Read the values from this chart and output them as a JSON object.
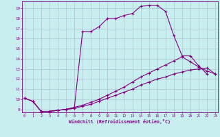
{
  "xlabel": "Windchill (Refroidissement éolien,°C)",
  "bg_color": "#c8eef0",
  "line_color": "#800080",
  "grid_color": "#aabbcc",
  "line1_x": [
    0,
    1,
    2,
    3,
    4,
    5,
    6,
    7,
    8,
    9,
    10,
    11,
    12,
    13,
    14,
    15,
    16,
    17,
    18,
    19,
    20,
    21,
    22
  ],
  "line1_y": [
    10.1,
    9.8,
    8.8,
    8.8,
    8.9,
    9.0,
    9.1,
    16.7,
    16.7,
    17.2,
    18.0,
    18.0,
    18.3,
    18.5,
    19.2,
    19.3,
    19.3,
    18.7,
    16.3,
    14.3,
    14.3,
    13.3,
    12.5
  ],
  "line2_x": [
    0,
    1,
    2,
    3,
    4,
    5,
    6,
    7,
    8,
    9,
    10,
    11,
    12,
    13,
    14,
    15,
    16,
    17,
    18,
    19,
    20,
    21,
    22,
    23
  ],
  "line2_y": [
    10.1,
    9.8,
    8.8,
    8.8,
    8.9,
    9.0,
    9.2,
    9.4,
    9.7,
    10.0,
    10.4,
    10.8,
    11.2,
    11.7,
    12.2,
    12.6,
    13.0,
    13.4,
    13.8,
    14.2,
    13.7,
    13.2,
    12.8,
    12.5
  ],
  "line3_x": [
    0,
    1,
    2,
    3,
    4,
    5,
    6,
    7,
    8,
    9,
    10,
    11,
    12,
    13,
    14,
    15,
    16,
    17,
    18,
    19,
    20,
    21,
    22,
    23
  ],
  "line3_y": [
    10.1,
    9.8,
    8.8,
    8.8,
    8.9,
    9.0,
    9.1,
    9.3,
    9.5,
    9.8,
    10.1,
    10.4,
    10.7,
    11.0,
    11.4,
    11.7,
    12.0,
    12.2,
    12.5,
    12.7,
    12.9,
    13.0,
    13.1,
    12.5
  ],
  "xlim_min": -0.3,
  "xlim_max": 23.3,
  "ylim_min": 8.7,
  "ylim_max": 19.7,
  "yticks": [
    9,
    10,
    11,
    12,
    13,
    14,
    15,
    16,
    17,
    18,
    19
  ],
  "xticks": [
    0,
    1,
    2,
    3,
    4,
    5,
    6,
    7,
    8,
    9,
    10,
    11,
    12,
    13,
    14,
    15,
    16,
    17,
    18,
    19,
    20,
    21,
    22,
    23
  ]
}
